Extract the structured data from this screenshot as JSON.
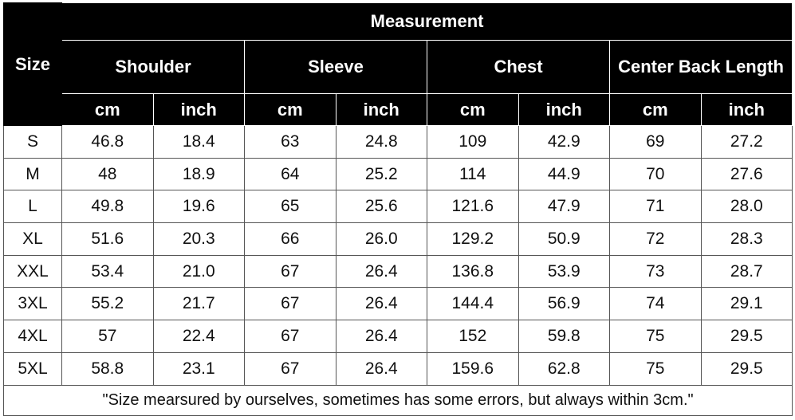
{
  "table": {
    "size_header": "Size",
    "measurement_header": "Measurement",
    "groups": [
      "Shoulder",
      "Sleeve",
      "Chest",
      "Center Back Length"
    ],
    "units": [
      "cm",
      "inch",
      "cm",
      "inch",
      "cm",
      "inch",
      "cm",
      "inch"
    ],
    "rows": [
      [
        "S",
        "46.8",
        "18.4",
        "63",
        "24.8",
        "109",
        "42.9",
        "69",
        "27.2"
      ],
      [
        "M",
        "48",
        "18.9",
        "64",
        "25.2",
        "114",
        "44.9",
        "70",
        "27.6"
      ],
      [
        "L",
        "49.8",
        "19.6",
        "65",
        "25.6",
        "121.6",
        "47.9",
        "71",
        "28.0"
      ],
      [
        "XL",
        "51.6",
        "20.3",
        "66",
        "26.0",
        "129.2",
        "50.9",
        "72",
        "28.3"
      ],
      [
        "XXL",
        "53.4",
        "21.0",
        "67",
        "26.4",
        "136.8",
        "53.9",
        "73",
        "28.7"
      ],
      [
        "3XL",
        "55.2",
        "21.7",
        "67",
        "26.4",
        "144.4",
        "56.9",
        "74",
        "29.1"
      ],
      [
        "4XL",
        "57",
        "22.4",
        "67",
        "26.4",
        "152",
        "59.8",
        "75",
        "29.5"
      ],
      [
        "5XL",
        "58.8",
        "23.1",
        "67",
        "26.4",
        "159.6",
        "62.8",
        "75",
        "29.5"
      ]
    ],
    "note": "\"Size mearsured by ourselves, sometimes has some errors, but always within 3cm.\""
  }
}
